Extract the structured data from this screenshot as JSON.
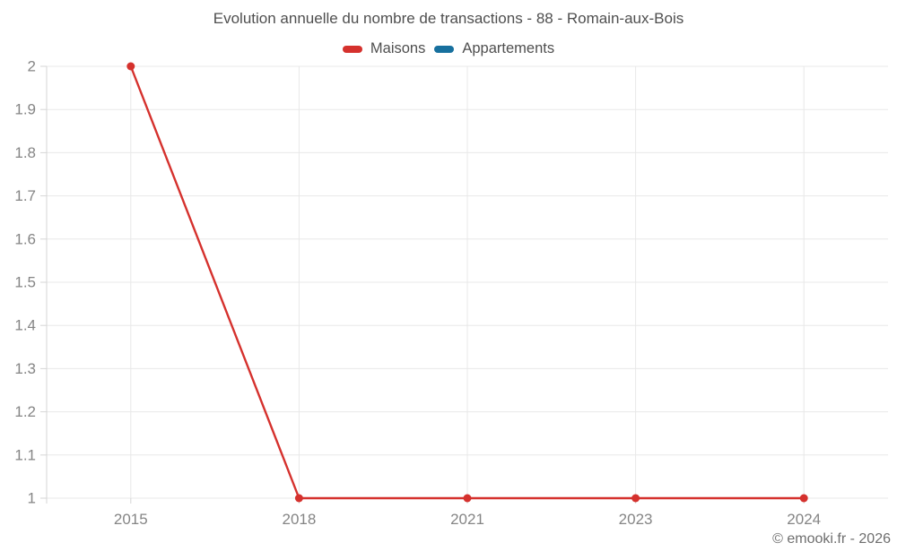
{
  "chart_data": {
    "type": "line",
    "title": "Evolution annuelle du nombre de transactions - 88 - Romain-aux-Bois",
    "categories": [
      "2015",
      "2018",
      "2021",
      "2023",
      "2024"
    ],
    "series": [
      {
        "name": "Maisons",
        "color": "#d5312d",
        "values": [
          2,
          1,
          1,
          1,
          1
        ]
      },
      {
        "name": "Appartements",
        "color": "#17709e",
        "values": []
      }
    ],
    "ylim": [
      1,
      2
    ],
    "y_tick_labels": [
      "1",
      "1.1",
      "1.2",
      "1.3",
      "1.4",
      "1.5",
      "1.6",
      "1.7",
      "1.8",
      "1.9",
      "2"
    ],
    "grid": true,
    "legend_position": "top",
    "xlabel": "",
    "ylabel": ""
  },
  "footer": {
    "credit": "© emooki.fr - 2026"
  }
}
